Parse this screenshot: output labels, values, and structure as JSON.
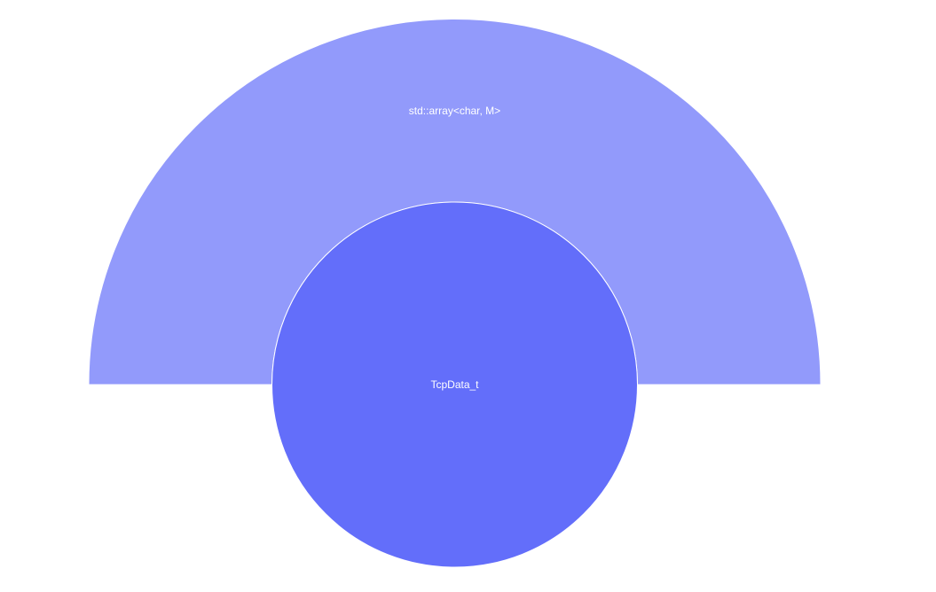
{
  "chart_data": {
    "type": "sunburst",
    "root": {
      "label": "TcpData_t",
      "color": "#636efa",
      "children": [
        {
          "label": "std::array<char, M>",
          "color": "#929afb",
          "share": 0.5
        }
      ]
    }
  }
}
